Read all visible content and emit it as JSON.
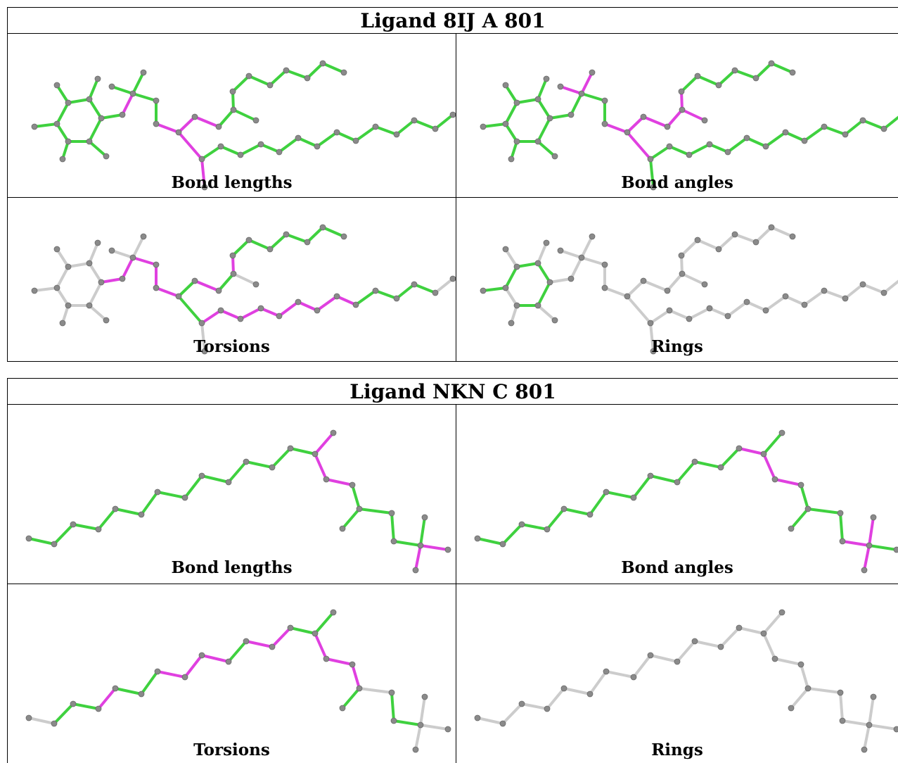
{
  "tables": [
    {
      "title": "Ligand 8IJ A 801",
      "panels": [
        {
          "caption": "Bond lengths"
        },
        {
          "caption": "Bond angles"
        },
        {
          "caption": "Torsions"
        },
        {
          "caption": "Rings"
        }
      ]
    },
    {
      "title": "Ligand NKN C 801",
      "panels": [
        {
          "caption": "Bond lengths"
        },
        {
          "caption": "Bond angles"
        },
        {
          "caption": "Torsions"
        },
        {
          "caption": "Rings"
        }
      ]
    }
  ],
  "colors": {
    "ok": "#3fd13f",
    "outlier": "#e040e0",
    "none": "#cccccc",
    "atom": "#8a8a8a"
  }
}
